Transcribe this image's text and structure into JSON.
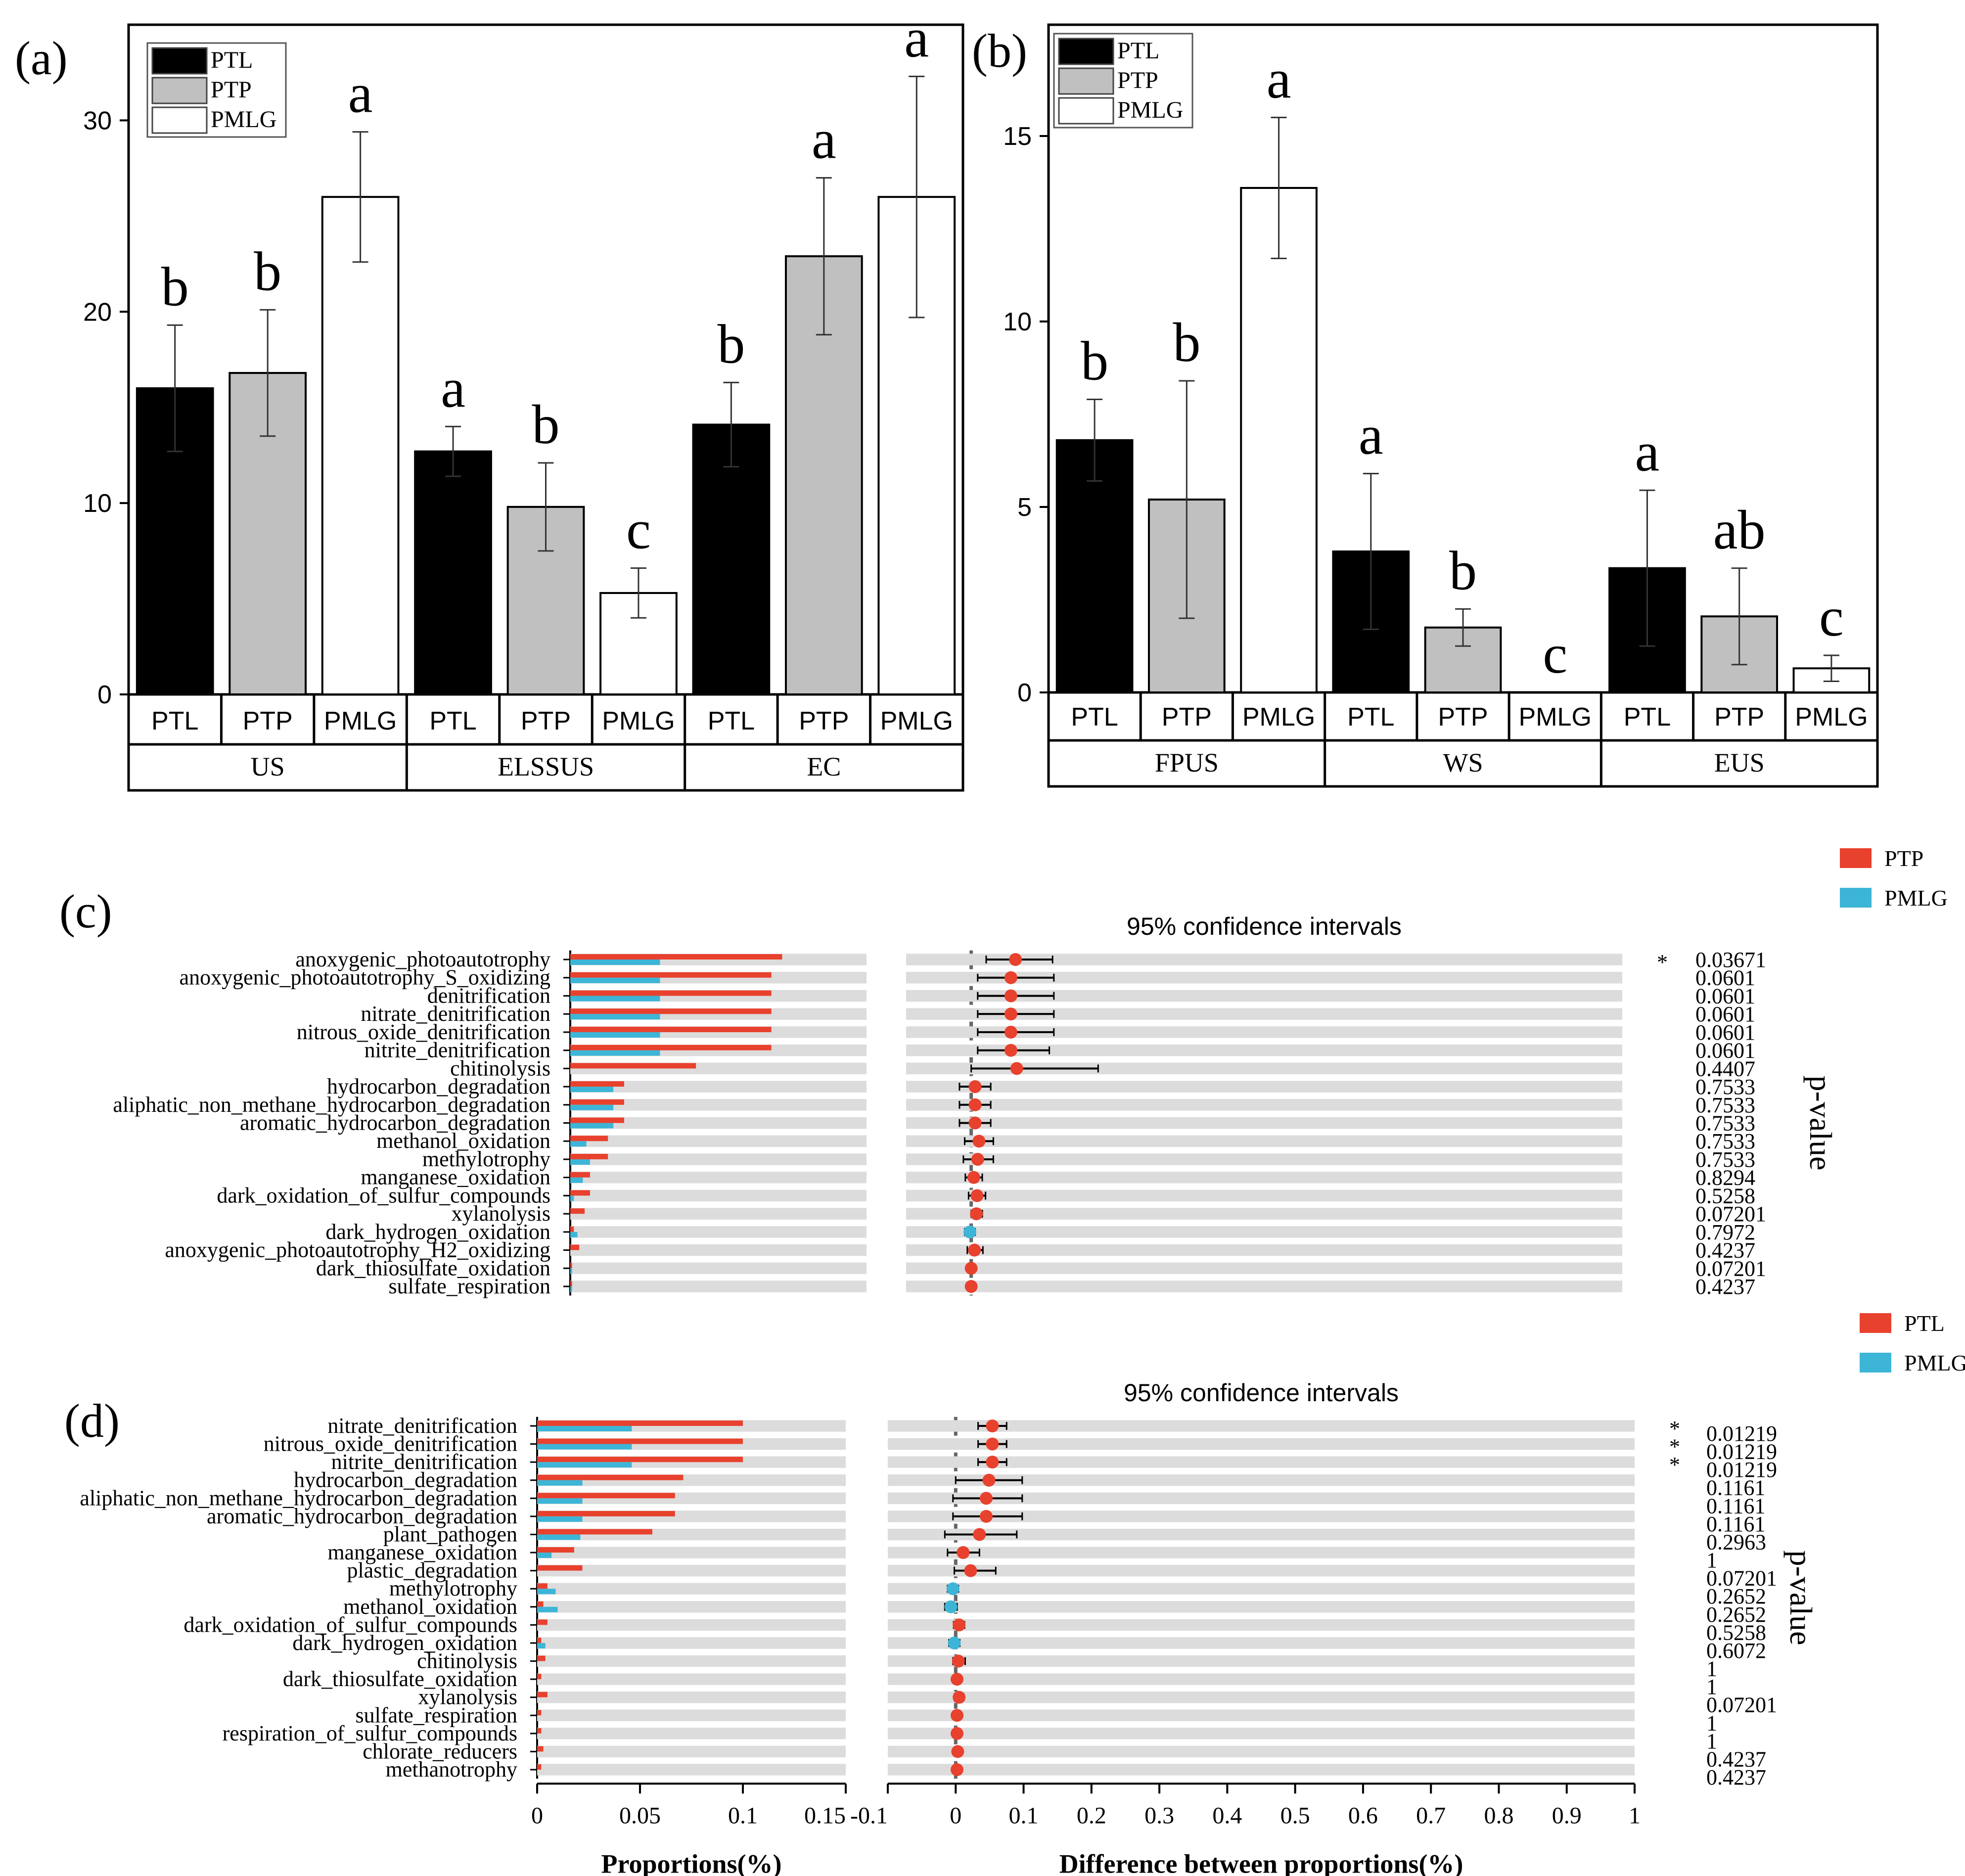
{
  "colors": {
    "ptl": "#000000",
    "ptp": "#c0c0c0",
    "pmlg": "#ffffff",
    "red": "#e8412e",
    "blue": "#3db5d6",
    "track": "#dcdcdc",
    "axis": "#000000"
  },
  "chart_data": [
    {
      "type": "bar",
      "panel": "(a)",
      "groups": [
        "US",
        "ELSSUS",
        "EC"
      ],
      "series": [
        {
          "name": "PTL",
          "values": [
            16.0,
            12.7,
            14.1
          ],
          "errors": [
            3.3,
            1.3,
            2.2
          ],
          "letters": [
            "b",
            "a",
            "b"
          ]
        },
        {
          "name": "PTP",
          "values": [
            16.8,
            9.8,
            22.9
          ],
          "errors": [
            3.3,
            2.3,
            4.1
          ],
          "letters": [
            "b",
            "b",
            "a"
          ]
        },
        {
          "name": "PMLG",
          "values": [
            26.0,
            5.3,
            26.0
          ],
          "errors": [
            3.4,
            1.3,
            6.3
          ],
          "letters": [
            "a",
            "c",
            "a"
          ]
        }
      ],
      "category_labels": [
        "PTL",
        "PTP",
        "PMLG"
      ],
      "ylim": [
        0,
        35
      ],
      "yticks": [
        0,
        10,
        20,
        30
      ],
      "legend": [
        "PTL",
        "PTP",
        "PMLG"
      ],
      "legend_position": "top-left"
    },
    {
      "type": "bar",
      "panel": "(b)",
      "groups": [
        "FPUS",
        "WS",
        "EUS"
      ],
      "series": [
        {
          "name": "PTL",
          "values": [
            6.8,
            3.8,
            3.35
          ],
          "errors": [
            1.1,
            2.1,
            2.1
          ],
          "letters": [
            "b",
            "a",
            "a"
          ]
        },
        {
          "name": "PTP",
          "values": [
            5.2,
            1.75,
            2.05
          ],
          "errors": [
            3.2,
            0.5,
            1.3
          ],
          "letters": [
            "b",
            "b",
            "ab"
          ]
        },
        {
          "name": "PMLG",
          "values": [
            13.6,
            0,
            0.65
          ],
          "errors": [
            1.9,
            0,
            0.35
          ],
          "letters": [
            "a",
            "c",
            "c"
          ]
        }
      ],
      "category_labels": [
        "PTL",
        "PTP",
        "PMLG"
      ],
      "ylim": [
        0,
        18
      ],
      "yticks": [
        0,
        5,
        10,
        15
      ],
      "legend": [
        "PTL",
        "PTP",
        "PMLG"
      ],
      "legend_position": "top-left"
    },
    {
      "type": "extended_error_bar",
      "panel": "(c)",
      "legend": [
        "PTP",
        "PMLG"
      ],
      "ci_title": "95% confidence intervals",
      "ylabel_right": "p-value",
      "functions": [
        "anoxygenic_photoautotrophy",
        "anoxygenic_photoautotrophy_S_oxidizing",
        "denitrification",
        "nitrate_denitrification",
        "nitrous_oxide_denitrification",
        "nitrite_denitrification",
        "chitinolysis",
        "hydrocarbon_degradation",
        "aliphatic_non_methane_hydrocarbon_degradation",
        "aromatic_hydrocarbon_degradation",
        "methanol_oxidation",
        "methylotrophy",
        "manganese_oxidation",
        "dark_oxidation_of_sulfur_compounds",
        "xylanolysis",
        "dark_hydrogen_oxidation",
        "anoxygenic_photoautotrophy_H2_oxidizing",
        "dark_thiosulfate_oxidation",
        "sulfate_respiration"
      ],
      "group1_proportions": [
        0.118,
        0.112,
        0.112,
        0.112,
        0.112,
        0.112,
        0.07,
        0.03,
        0.03,
        0.03,
        0.021,
        0.021,
        0.011,
        0.011,
        0.008,
        0.002,
        0.005,
        0.001,
        0.001
      ],
      "group2_proportions": [
        0.05,
        0.05,
        0.05,
        0.05,
        0.05,
        0.05,
        0.0,
        0.024,
        0.024,
        0.024,
        0.009,
        0.011,
        0.007,
        0.002,
        0.0,
        0.004,
        0.0,
        0.001,
        0.001
      ],
      "xlim_prop": [
        0,
        0.165
      ],
      "differences": [
        0.068,
        0.061,
        0.061,
        0.061,
        0.061,
        0.061,
        0.07,
        0.006,
        0.006,
        0.006,
        0.012,
        0.01,
        0.004,
        0.009,
        0.008,
        -0.002,
        0.005,
        0.0,
        0.0
      ],
      "ci_low": [
        0.023,
        0.01,
        0.01,
        0.01,
        0.01,
        0.01,
        0.0,
        -0.018,
        -0.018,
        -0.018,
        -0.01,
        -0.012,
        -0.009,
        -0.004,
        0.0,
        -0.01,
        -0.006,
        -0.002,
        -0.002
      ],
      "ci_high": [
        0.125,
        0.127,
        0.127,
        0.127,
        0.127,
        0.12,
        0.195,
        0.03,
        0.03,
        0.03,
        0.034,
        0.034,
        0.017,
        0.022,
        0.017,
        0.006,
        0.018,
        0.002,
        0.002
      ],
      "xlim_diff": [
        -0.1,
        1.0
      ],
      "p_values": [
        "0.03671",
        "0.0601",
        "0.0601",
        "0.0601",
        "0.0601",
        "0.0601",
        "0.4407",
        "0.7533",
        "0.7533",
        "0.7533",
        "0.7533",
        "0.7533",
        "0.8294",
        "0.5258",
        "0.07201",
        "0.7972",
        "0.4237",
        "0.07201",
        "0.4237"
      ],
      "significance": [
        "*",
        "",
        "",
        "",
        "",
        "",
        "",
        "",
        "",
        "",
        "",
        "",
        "",
        "",
        "",
        "",
        "",
        "",
        ""
      ]
    },
    {
      "type": "extended_error_bar",
      "panel": "(d)",
      "legend": [
        "PTL",
        "PMLG"
      ],
      "ci_title": "95% confidence intervals",
      "ylabel_right": "p-value",
      "functions": [
        "nitrate_denitrification",
        "nitrous_oxide_denitrification",
        "nitrite_denitrification",
        "hydrocarbon_degradation",
        "aliphatic_non_methane_hydrocarbon_degradation",
        "aromatic_hydrocarbon_degradation",
        "plant_pathogen",
        "manganese_oxidation",
        "plastic_degradation",
        "methylotrophy",
        "methanol_oxidation",
        "dark_oxidation_of_sulfur_compounds",
        "dark_hydrogen_oxidation",
        "chitinolysis",
        "dark_thiosulfate_oxidation",
        "xylanolysis",
        "sulfate_respiration",
        "respiration_of_sulfur_compounds",
        "chlorate_reducers",
        "methanotrophy"
      ],
      "group1_proportions": [
        0.1,
        0.1,
        0.1,
        0.071,
        0.067,
        0.067,
        0.056,
        0.018,
        0.022,
        0.005,
        0.003,
        0.005,
        0.002,
        0.004,
        0.002,
        0.005,
        0.002,
        0.002,
        0.003,
        0.002
      ],
      "group2_proportions": [
        0.046,
        0.046,
        0.046,
        0.022,
        0.022,
        0.022,
        0.021,
        0.007,
        0.0,
        0.009,
        0.01,
        0.0,
        0.004,
        0.0,
        0.0,
        0.0,
        0.0,
        0.0,
        0.0,
        0.0
      ],
      "xlim_prop": [
        0,
        0.15
      ],
      "differences": [
        0.054,
        0.054,
        0.054,
        0.049,
        0.045,
        0.045,
        0.035,
        0.011,
        0.022,
        -0.004,
        -0.007,
        0.005,
        -0.002,
        0.004,
        0.002,
        0.005,
        0.002,
        0.002,
        0.003,
        0.002
      ],
      "ci_low": [
        0.033,
        0.033,
        0.033,
        0.0,
        -0.004,
        -0.004,
        -0.016,
        -0.012,
        -0.002,
        -0.012,
        -0.016,
        -0.003,
        -0.01,
        -0.004,
        -0.003,
        -0.002,
        -0.003,
        -0.003,
        -0.002,
        -0.003
      ],
      "ci_high": [
        0.075,
        0.075,
        0.075,
        0.098,
        0.098,
        0.098,
        0.09,
        0.035,
        0.059,
        0.004,
        0.002,
        0.013,
        0.006,
        0.014,
        0.007,
        0.012,
        0.007,
        0.007,
        0.008,
        0.007
      ],
      "xlim_diff": [
        -0.1,
        1.0
      ],
      "xticks_prop": [
        "0",
        "0.05",
        "0.1",
        "0.15"
      ],
      "xticks_diff": [
        "-0.1",
        "0",
        "0.1",
        "0.2",
        "0.3",
        "0.4",
        "0.5",
        "0.6",
        "0.7",
        "0.8",
        "0.9",
        "1"
      ],
      "xlabel_prop": "Proportions(%)",
      "xlabel_diff": "Difference between proportions(%)",
      "p_values": [
        "0.01219",
        "0.01219",
        "0.01219",
        "0.1161",
        "0.1161",
        "0.1161",
        "0.2963",
        "1",
        "0.07201",
        "0.2652",
        "0.2652",
        "0.5258",
        "0.6072",
        "1",
        "1",
        "0.07201",
        "1",
        "1",
        "0.4237",
        "0.4237"
      ],
      "significance": [
        "*",
        "*",
        "*",
        "",
        "",
        "",
        "",
        "",
        "",
        "",
        "",
        "",
        "",
        "",
        "",
        "",
        "",
        "",
        "",
        ""
      ]
    }
  ]
}
